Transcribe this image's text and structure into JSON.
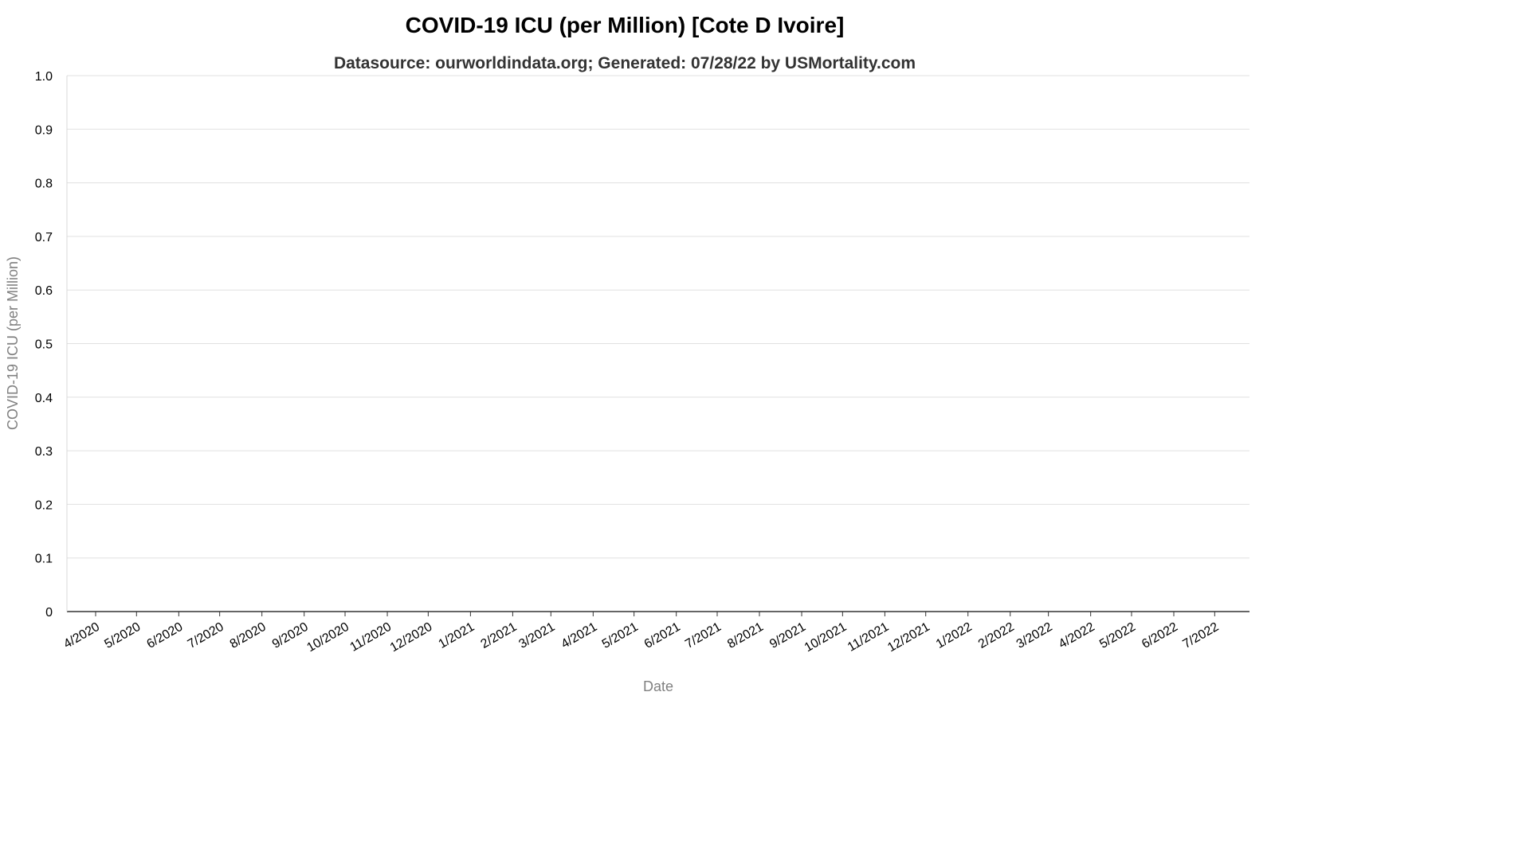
{
  "chart_data": {
    "type": "line",
    "title": "COVID-19 ICU (per Million) [Cote D Ivoire]",
    "subtitle": "Datasource: ourworldindata.org; Generated: 07/28/22 by USMortality.com",
    "xlabel": "Date",
    "ylabel": "COVID-19 ICU (per Million)",
    "ylim": [
      0,
      1.0
    ],
    "y_ticks": [
      "0",
      "0.1",
      "0.2",
      "0.3",
      "0.4",
      "0.5",
      "0.6",
      "0.7",
      "0.8",
      "0.9",
      "1.0"
    ],
    "x_ticks": [
      "4/2020",
      "5/2020",
      "6/2020",
      "7/2020",
      "8/2020",
      "9/2020",
      "10/2020",
      "11/2020",
      "12/2020",
      "1/2021",
      "2/2021",
      "3/2021",
      "4/2021",
      "5/2021",
      "6/2021",
      "7/2021",
      "8/2021",
      "9/2021",
      "10/2021",
      "11/2021",
      "12/2021",
      "1/2022",
      "2/2022",
      "3/2022",
      "4/2022",
      "5/2022",
      "6/2022",
      "7/2022"
    ],
    "grid": true,
    "series": []
  }
}
